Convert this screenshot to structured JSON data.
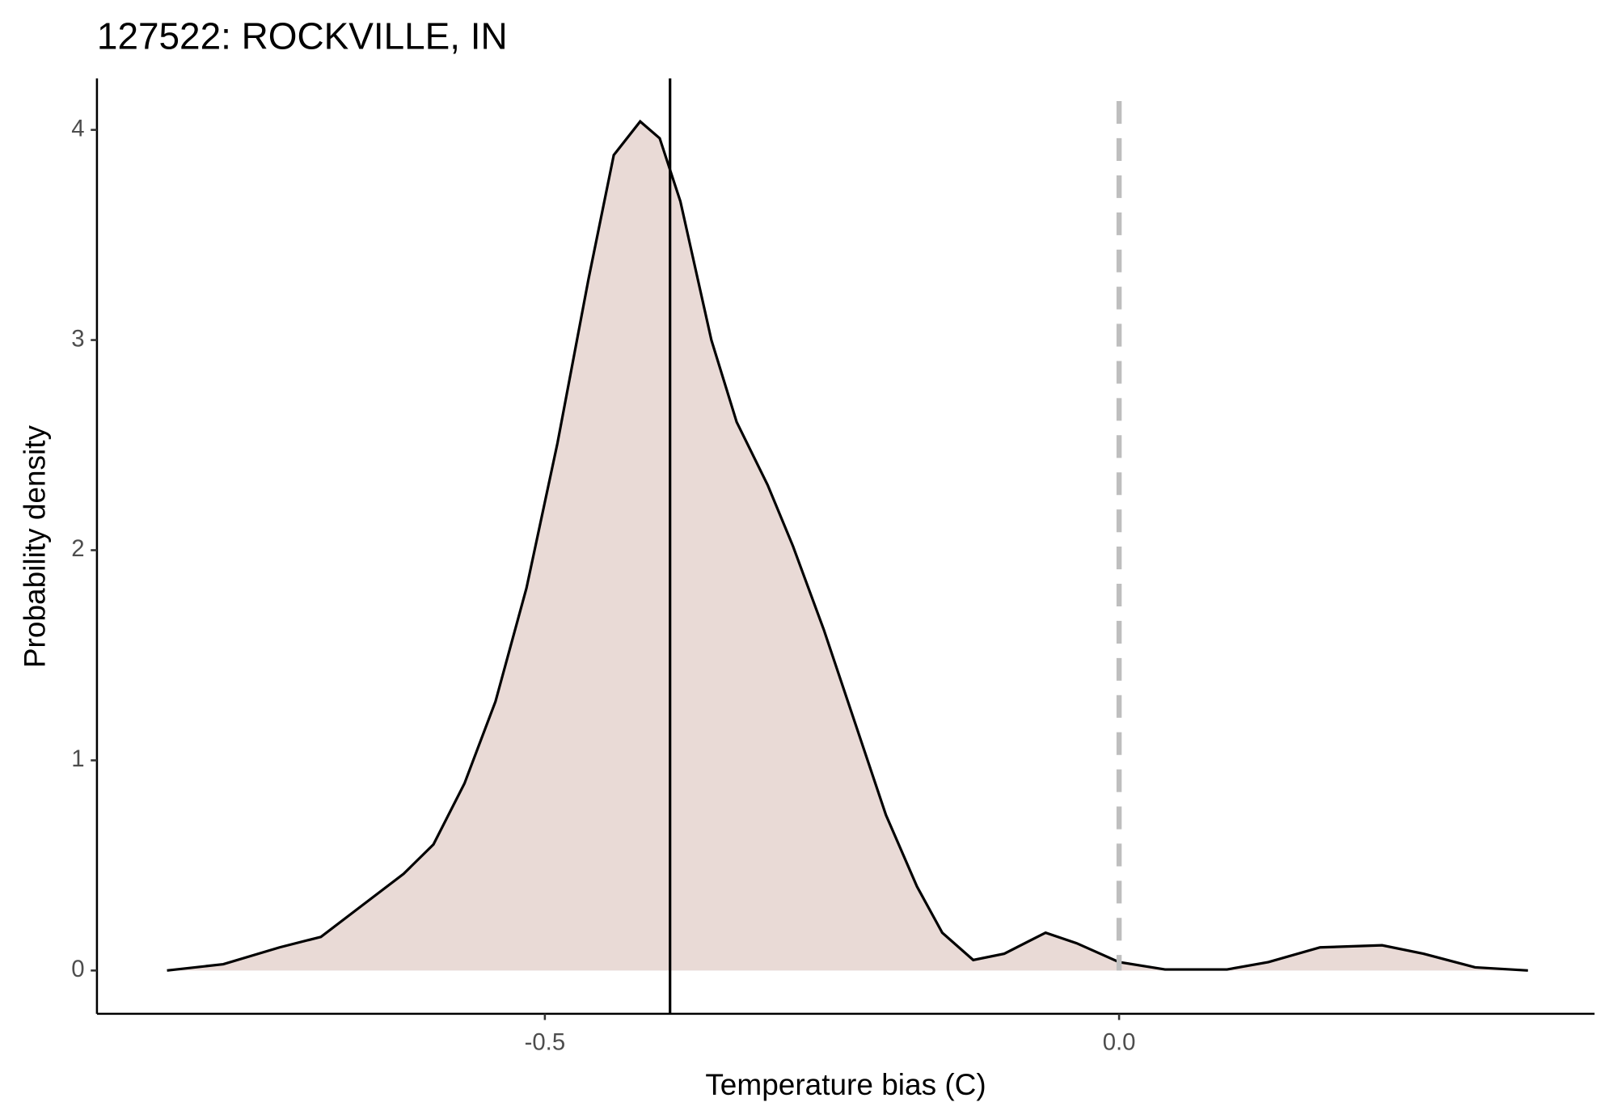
{
  "chart_data": {
    "type": "density",
    "title": "127522: ROCKVILLE, IN",
    "xlabel": "Temperature bias (C)",
    "ylabel": "Probability density",
    "x": [
      -0.829,
      -0.78,
      -0.731,
      -0.695,
      -0.659,
      -0.623,
      -0.597,
      -0.57,
      -0.543,
      -0.516,
      -0.489,
      -0.462,
      -0.44,
      -0.417,
      -0.4,
      -0.382,
      -0.355,
      -0.333,
      -0.306,
      -0.284,
      -0.257,
      -0.23,
      -0.203,
      -0.176,
      -0.154,
      -0.127,
      -0.1,
      -0.064,
      -0.037,
      0.0,
      0.04,
      0.094,
      0.13,
      0.175,
      0.229,
      0.265,
      0.31,
      0.356
    ],
    "values": [
      0,
      0.03,
      0.11,
      0.16,
      0.31,
      0.46,
      0.6,
      0.89,
      1.28,
      1.82,
      2.51,
      3.29,
      3.88,
      4.04,
      3.96,
      3.66,
      3.0,
      2.61,
      2.31,
      2.02,
      1.62,
      1.18,
      0.74,
      0.4,
      0.18,
      0.05,
      0.08,
      0.18,
      0.13,
      0.04,
      0.005,
      0.005,
      0.04,
      0.11,
      0.12,
      0.08,
      0.015,
      0
    ],
    "fill": "#e9dad6",
    "color": "#000000",
    "vlines": [
      {
        "x": -0.391,
        "color": "#000000",
        "style": "solid"
      },
      {
        "x": 0,
        "color": "#bebebe",
        "style": "dashed"
      }
    ],
    "xlim": [
      -0.89,
      0.414
    ],
    "ylim": [
      -0.206,
      4.245
    ],
    "xticks": [
      -0.5,
      {
        "value": 0,
        "label": "0.0"
      }
    ],
    "yticks": [
      0,
      1,
      2,
      3,
      4
    ]
  }
}
